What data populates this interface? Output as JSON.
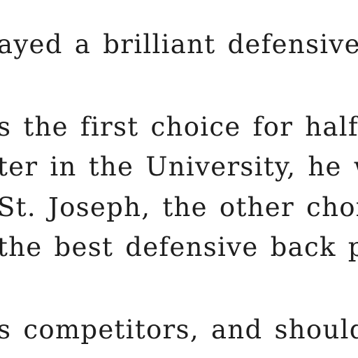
{
  "document": {
    "lines": [
      "ayed a brilliant defensive ga",
      "s the first choice for half-ba",
      "ter in the University, he wo",
      "St. Joseph, the other choice",
      "the best defensive back play",
      "s competitors, and should b"
    ]
  }
}
